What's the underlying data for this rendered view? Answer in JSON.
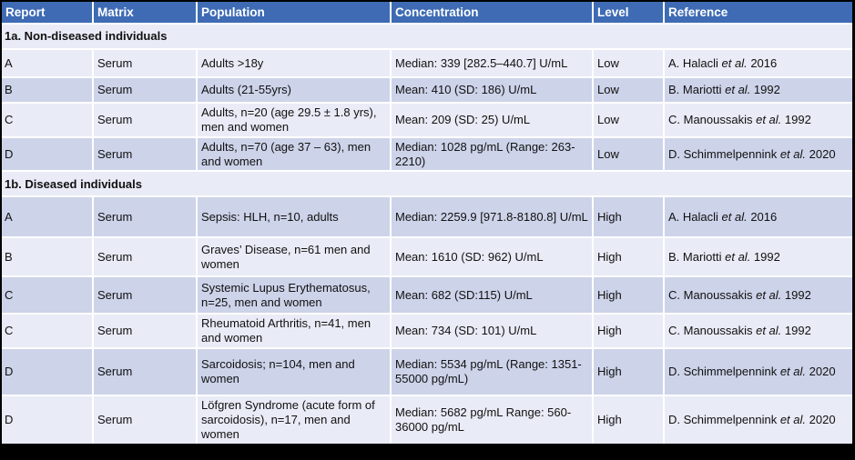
{
  "colors": {
    "header_bg": "#3E6BB4",
    "header_text": "#FFFFFF",
    "band_light": "#E9EBF6",
    "band_dark": "#CDD3E9",
    "grid": "#FFFFFF",
    "frame": "#000000",
    "body_text": "#111111"
  },
  "table": {
    "columns": [
      "Report",
      "Matrix",
      "Population",
      "Concentration",
      "Level",
      "Reference"
    ],
    "sections": [
      {
        "title": "1a. Non-diseased individuals",
        "rows": [
          {
            "report": "A",
            "matrix": "Serum",
            "population": "Adults >18y",
            "concentration": "Median: 339 [282.5–440.7] U/mL",
            "level": "Low",
            "reference": {
              "pre": "A. Halacli ",
              "italic": "et al.",
              "post": " 2016"
            }
          },
          {
            "report": "B",
            "matrix": "Serum",
            "population": "Adults (21-55yrs)",
            "concentration": "Mean: 410 (SD: 186) U/mL",
            "level": "Low",
            "reference": {
              "pre": "B. Mariotti ",
              "italic": "et al.",
              "post": " 1992"
            }
          },
          {
            "report": "C",
            "matrix": "Serum",
            "population": "Adults, n=20 (age 29.5 ± 1.8 yrs), men and women",
            "concentration": "Mean: 209 (SD: 25) U/mL",
            "level": "Low",
            "reference": {
              "pre": "C. Manoussakis ",
              "italic": "et al.",
              "post": " 1992"
            }
          },
          {
            "report": "D",
            "matrix": "Serum",
            "population": "Adults, n=70 (age 37 – 63), men and women",
            "concentration": "Median: 1028 pg/mL (Range: 263-2210)",
            "level": "Low",
            "reference": {
              "pre": "D. Schimmelpennink ",
              "italic": "et al.",
              "post": " 2020"
            }
          }
        ]
      },
      {
        "title": "1b. Diseased individuals",
        "rows": [
          {
            "report": "A",
            "matrix": "Serum",
            "population": "Sepsis: HLH, n=10, adults",
            "concentration": "Median: 2259.9 [971.8-8180.8] U/mL",
            "level": "High",
            "reference": {
              "pre": "A. Halacli ",
              "italic": "et al.",
              "post": " 2016"
            }
          },
          {
            "report": "B",
            "matrix": "Serum",
            "population": "Graves’ Disease, n=61 men and women",
            "concentration": "Mean: 1610 (SD: 962) U/mL",
            "level": "High",
            "reference": {
              "pre": "B. Mariotti ",
              "italic": "et al.",
              "post": " 1992"
            }
          },
          {
            "report": "C",
            "matrix": "Serum",
            "population": "Systemic Lupus Erythematosus, n=25, men and women",
            "concentration": "Mean: 682 (SD:115) U/mL",
            "level": "High",
            "reference": {
              "pre": "C. Manoussakis ",
              "italic": "et al.",
              "post": " 1992"
            }
          },
          {
            "report": "C",
            "matrix": "Serum",
            "population": "Rheumatoid Arthritis, n=41, men and women",
            "concentration": "Mean: 734 (SD: 101) U/mL",
            "level": "High",
            "reference": {
              "pre": "C. Manoussakis ",
              "italic": "et al.",
              "post": " 1992"
            }
          },
          {
            "report": "D",
            "matrix": "Serum",
            "population": "Sarcoidosis; n=104, men and women",
            "concentration": "Median: 5534 pg/mL (Range: 1351-55000 pg/mL)",
            "level": "High",
            "reference": {
              "pre": "D. Schimmelpennink ",
              "italic": "et al.",
              "post": " 2020"
            }
          },
          {
            "report": "D",
            "matrix": "Serum",
            "population": "Löfgren Syndrome (acute form of sarcoidosis), n=17, men and women",
            "concentration": "Median: 5682 pg/mL Range: 560-36000 pg/mL",
            "level": "High",
            "reference": {
              "pre": "D. Schimmelpennink ",
              "italic": "et al.",
              "post": " 2020"
            }
          }
        ]
      }
    ]
  }
}
